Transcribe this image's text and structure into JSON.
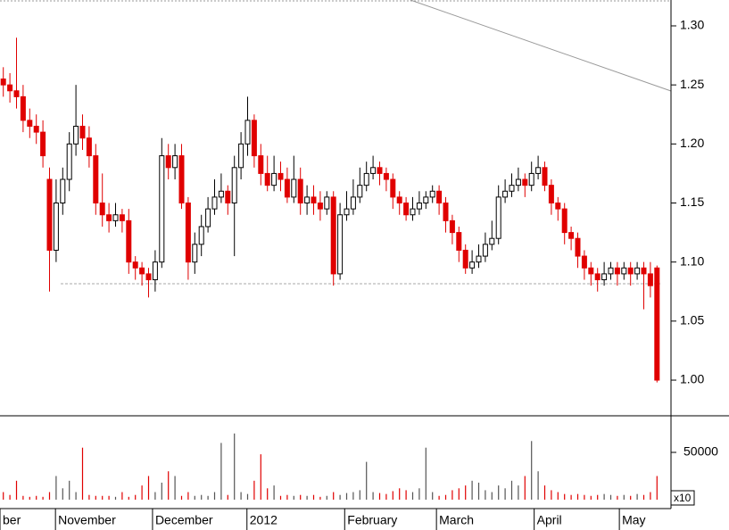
{
  "chart_data": {
    "type": "candlestick",
    "xlim": [
      -0.5,
      99.5
    ],
    "xticks": [
      {
        "value": -0.5,
        "label": "ber"
      },
      {
        "value": 7.9,
        "label": "November"
      },
      {
        "value": 22.6,
        "label": "December"
      },
      {
        "value": 36.9,
        "label": "2012"
      },
      {
        "value": 51.7,
        "label": "February"
      },
      {
        "value": 65.6,
        "label": "March"
      },
      {
        "value": 80.4,
        "label": "April"
      },
      {
        "value": 93.3,
        "label": "May"
      }
    ],
    "ylim": [
      0.9698,
      1.3219
    ],
    "yticks": [
      {
        "value": 1,
        "label": "1.00"
      },
      {
        "value": 1.05,
        "label": "1.05"
      },
      {
        "value": 1.1,
        "label": "1.10"
      },
      {
        "value": 1.15,
        "label": "1.15"
      },
      {
        "value": 1.2,
        "label": "1.20"
      },
      {
        "value": 1.25,
        "label": "1.25"
      },
      {
        "value": 1.3,
        "label": "1.30"
      }
    ],
    "up_color": "#ffffff",
    "down_color": "#e00000",
    "open": [
      1.255,
      1.25,
      1.245,
      1.24,
      1.22,
      1.215,
      1.21,
      1.17,
      1.11,
      1.15,
      1.17,
      1.2,
      1.215,
      1.205,
      1.19,
      1.15,
      1.14,
      1.135,
      1.14,
      1.135,
      1.1,
      1.095,
      1.09,
      1.085,
      1.1,
      1.19,
      1.18,
      1.19,
      1.15,
      1.1,
      1.115,
      1.13,
      1.145,
      1.155,
      1.16,
      1.15,
      1.18,
      1.2,
      1.22,
      1.19,
      1.175,
      1.165,
      1.175,
      1.17,
      1.155,
      1.17,
      1.15,
      1.155,
      1.15,
      1.145,
      1.155,
      1.09,
      1.14,
      1.145,
      1.155,
      1.165,
      1.175,
      1.18,
      1.175,
      1.17,
      1.155,
      1.15,
      1.14,
      1.145,
      1.15,
      1.155,
      1.16,
      1.15,
      1.135,
      1.125,
      1.11,
      1.095,
      1.1,
      1.105,
      1.115,
      1.12,
      1.155,
      1.16,
      1.165,
      1.17,
      1.165,
      1.175,
      1.18,
      1.165,
      1.15,
      1.145,
      1.125,
      1.12,
      1.105,
      1.095,
      1.09,
      1.085,
      1.09,
      1.095,
      1.09,
      1.095,
      1.09,
      1.095,
      1.09,
      1.095
    ],
    "high": [
      1.265,
      1.26,
      1.29,
      1.25,
      1.23,
      1.225,
      1.22,
      1.18,
      1.17,
      1.18,
      1.21,
      1.25,
      1.225,
      1.215,
      1.2,
      1.175,
      1.15,
      1.15,
      1.145,
      1.145,
      1.105,
      1.1,
      1.095,
      1.11,
      1.205,
      1.2,
      1.2,
      1.2,
      1.155,
      1.125,
      1.14,
      1.155,
      1.17,
      1.175,
      1.165,
      1.19,
      1.21,
      1.24,
      1.225,
      1.2,
      1.19,
      1.19,
      1.185,
      1.18,
      1.19,
      1.18,
      1.165,
      1.165,
      1.16,
      1.16,
      1.16,
      1.15,
      1.16,
      1.17,
      1.18,
      1.185,
      1.19,
      1.185,
      1.18,
      1.175,
      1.16,
      1.155,
      1.155,
      1.16,
      1.16,
      1.165,
      1.165,
      1.155,
      1.14,
      1.13,
      1.115,
      1.11,
      1.115,
      1.125,
      1.135,
      1.165,
      1.17,
      1.175,
      1.18,
      1.175,
      1.185,
      1.19,
      1.185,
      1.17,
      1.155,
      1.15,
      1.13,
      1.125,
      1.11,
      1.1,
      1.095,
      1.1,
      1.1,
      1.1,
      1.1,
      1.1,
      1.1,
      1.1,
      1.1,
      1.097
    ],
    "low": [
      1.24,
      1.235,
      1.23,
      1.21,
      1.205,
      1.2,
      1.18,
      1.075,
      1.1,
      1.14,
      1.16,
      1.19,
      1.195,
      1.18,
      1.14,
      1.13,
      1.125,
      1.13,
      1.125,
      1.09,
      1.085,
      1.08,
      1.07,
      1.075,
      1.095,
      1.17,
      1.17,
      1.145,
      1.085,
      1.09,
      1.105,
      1.125,
      1.14,
      1.15,
      1.14,
      1.105,
      1.17,
      1.19,
      1.18,
      1.165,
      1.16,
      1.16,
      1.16,
      1.15,
      1.15,
      1.14,
      1.14,
      1.14,
      1.135,
      1.14,
      1.08,
      1.085,
      1.135,
      1.14,
      1.15,
      1.16,
      1.17,
      1.165,
      1.16,
      1.145,
      1.14,
      1.135,
      1.135,
      1.14,
      1.145,
      1.15,
      1.14,
      1.125,
      1.115,
      1.1,
      1.09,
      1.09,
      1.095,
      1.1,
      1.11,
      1.115,
      1.15,
      1.155,
      1.16,
      1.155,
      1.16,
      1.17,
      1.16,
      1.14,
      1.135,
      1.115,
      1.11,
      1.095,
      1.085,
      1.08,
      1.075,
      1.08,
      1.085,
      1.08,
      1.085,
      1.08,
      1.085,
      1.06,
      1.07,
      0.998
    ],
    "close": [
      1.25,
      1.245,
      1.24,
      1.22,
      1.215,
      1.21,
      1.19,
      1.11,
      1.15,
      1.17,
      1.2,
      1.215,
      1.205,
      1.19,
      1.15,
      1.14,
      1.135,
      1.14,
      1.135,
      1.1,
      1.095,
      1.09,
      1.085,
      1.1,
      1.19,
      1.18,
      1.19,
      1.15,
      1.1,
      1.115,
      1.13,
      1.145,
      1.155,
      1.16,
      1.15,
      1.18,
      1.2,
      1.22,
      1.19,
      1.175,
      1.165,
      1.175,
      1.17,
      1.155,
      1.17,
      1.15,
      1.155,
      1.15,
      1.145,
      1.155,
      1.09,
      1.14,
      1.145,
      1.155,
      1.165,
      1.175,
      1.18,
      1.175,
      1.17,
      1.155,
      1.15,
      1.14,
      1.145,
      1.15,
      1.155,
      1.16,
      1.15,
      1.135,
      1.125,
      1.11,
      1.095,
      1.1,
      1.105,
      1.115,
      1.12,
      1.155,
      1.16,
      1.165,
      1.17,
      1.165,
      1.175,
      1.18,
      1.165,
      1.15,
      1.145,
      1.125,
      1.12,
      1.105,
      1.095,
      1.09,
      1.085,
      1.09,
      1.095,
      1.09,
      1.095,
      1.09,
      1.095,
      1.09,
      1.08,
      1
    ],
    "volume": [
      8000,
      5000,
      20000,
      4000,
      3000,
      4000,
      3000,
      8000,
      25000,
      12000,
      20000,
      8000,
      55000,
      5000,
      4000,
      4000,
      4000,
      3000,
      8000,
      3000,
      5000,
      15000,
      25000,
      8000,
      18000,
      30000,
      25000,
      4000,
      8000,
      4000,
      5000,
      4000,
      8000,
      60000,
      5000,
      70000,
      8000,
      6000,
      20000,
      48000,
      12000,
      15000,
      4000,
      5000,
      4000,
      5000,
      4000,
      5000,
      3000,
      4000,
      8000,
      5000,
      7000,
      8000,
      10000,
      40000,
      8000,
      7000,
      6000,
      9000,
      12000,
      10000,
      8000,
      12000,
      55000,
      8000,
      4000,
      5000,
      10000,
      12000,
      15000,
      20000,
      18000,
      10000,
      8000,
      15000,
      12000,
      20000,
      15000,
      25000,
      62000,
      30000,
      15000,
      10000,
      8000,
      6000,
      5000,
      6000,
      5000,
      4000,
      5000,
      6000,
      5000,
      4000,
      5000,
      4000,
      6000,
      5000,
      8000,
      25000
    ],
    "volume_ylim": [
      0,
      88700
    ],
    "volume_yticks": [
      50000
    ],
    "volume_multiplier_label": "x10"
  }
}
